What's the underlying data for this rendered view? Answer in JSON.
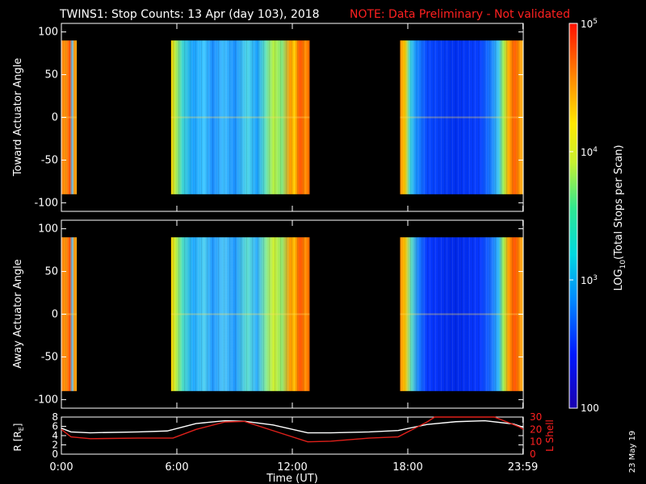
{
  "header": {
    "title": "TWINS1: Stop Counts: 13 Apr (day 103), 2018",
    "note": "NOTE: Data Preliminary - Not validated"
  },
  "colorbar": {
    "label": "LOG10(Total Stops per Scan)",
    "label_main": "LOG",
    "label_sub": "10",
    "label_rest": "(Total Stops per Scan)",
    "ticks": [
      {
        "base": "10",
        "exp": "5",
        "value": 100000
      },
      {
        "base": "10",
        "exp": "4",
        "value": 10000
      },
      {
        "base": "10",
        "exp": "3",
        "value": 1000
      },
      {
        "base": "100",
        "exp": "",
        "value": 100
      }
    ]
  },
  "footer": {
    "xlabel": "Time (UT)",
    "date_stamp": "23 May 19",
    "orbit_left_label": "R [R",
    "orbit_left_sub": "E",
    "orbit_left_close": "]",
    "orbit_right_label": "L Shell"
  },
  "chart_data": [
    {
      "type": "heatmap",
      "ylabel": "Toward Actuator Angle",
      "xlim": [
        0,
        24
      ],
      "ylim": [
        -110,
        110
      ],
      "yticks": [
        "100",
        "50",
        "0",
        "-50",
        "-100"
      ],
      "ytick_values": [
        100,
        50,
        0,
        -50,
        -100
      ],
      "xticks": [
        "0:00",
        "6:00",
        "12:00",
        "18:00",
        "23:59"
      ],
      "xtick_values": [
        0,
        6,
        12,
        18,
        23.98
      ],
      "data_angle_range": [
        -90,
        90
      ],
      "intervals": [
        {
          "start": 0.0,
          "end": 0.8,
          "profile": "edge"
        },
        {
          "start": 5.7,
          "end": 12.9,
          "profile": "middle"
        },
        {
          "start": 17.6,
          "end": 24.0,
          "profile": "late"
        }
      ]
    },
    {
      "type": "heatmap",
      "ylabel": "Away Actuator Angle",
      "xlim": [
        0,
        24
      ],
      "ylim": [
        -110,
        110
      ],
      "yticks": [
        "100",
        "50",
        "0",
        "-50",
        "-100"
      ],
      "ytick_values": [
        100,
        50,
        0,
        -50,
        -100
      ],
      "xticks": [
        "0:00",
        "6:00",
        "12:00",
        "18:00",
        "23:59"
      ],
      "xtick_values": [
        0,
        6,
        12,
        18,
        23.98
      ],
      "data_angle_range": [
        -90,
        90
      ],
      "intervals": [
        {
          "start": 0.0,
          "end": 0.8,
          "profile": "edge"
        },
        {
          "start": 5.7,
          "end": 12.9,
          "profile": "middle_away"
        },
        {
          "start": 17.6,
          "end": 24.0,
          "profile": "late_away"
        }
      ]
    },
    {
      "type": "line",
      "ylabel": "R [RE]",
      "y2label": "L Shell",
      "xlim": [
        0,
        24
      ],
      "ylim": [
        0,
        8
      ],
      "y2lim": [
        0,
        30
      ],
      "yticks": [
        "8",
        "6",
        "4",
        "2",
        "0"
      ],
      "ytick_values": [
        8,
        6,
        4,
        2,
        0
      ],
      "y2ticks": [
        "30",
        "20",
        "10",
        "0"
      ],
      "y2tick_values": [
        30,
        20,
        10,
        0
      ],
      "xticks": [
        "0:00",
        "6:00",
        "12:00",
        "18:00",
        "23:59"
      ],
      "xtick_values": [
        0,
        6,
        12,
        18,
        23.98
      ],
      "series": [
        {
          "color": "#ffffff",
          "axis": "left",
          "x": [
            0,
            0.5,
            1.5,
            4,
            5.5,
            7,
            8.5,
            9.5,
            11,
            12.8,
            14,
            16,
            17.5,
            19,
            20.5,
            22,
            23.5,
            24
          ],
          "y": [
            5.6,
            4.8,
            4.6,
            4.8,
            5.0,
            6.6,
            7.2,
            7.1,
            6.3,
            4.6,
            4.6,
            4.8,
            5.1,
            6.4,
            7.0,
            7.2,
            6.5,
            5.8
          ]
        },
        {
          "color": "#e0201a",
          "axis": "right",
          "x": [
            0,
            0.5,
            1.5,
            4,
            5.8,
            7,
            8.5,
            9.5,
            11,
            12.8,
            14,
            16,
            17.5,
            19,
            19.4,
            22.5,
            23.8,
            24
          ],
          "y": [
            20,
            14,
            12.5,
            13,
            13,
            20,
            26,
            26.5,
            19,
            10,
            10.5,
            13,
            14,
            26,
            30,
            30,
            22,
            20
          ]
        }
      ]
    }
  ]
}
